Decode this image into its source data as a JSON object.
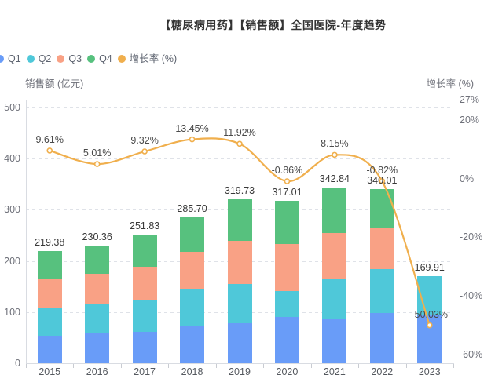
{
  "title": "【糖尿病用药】【销售额】全国医院-年度趋势",
  "legend": {
    "position": "top-left",
    "items": [
      {
        "label": "Q1",
        "color": "#699CF8"
      },
      {
        "label": "Q2",
        "color": "#4FC8D9"
      },
      {
        "label": "Q3",
        "color": "#F9A185"
      },
      {
        "label": "Q4",
        "color": "#57C17E"
      },
      {
        "label": "增长率 (%)",
        "color": "#F0AF4D"
      }
    ]
  },
  "chart_data": {
    "type": "bar",
    "variant": "stacked-bars-with-growth-line",
    "title": "【糖尿病用药】【销售额】全国医院-年度趋势",
    "categories": [
      "2015",
      "2016",
      "2017",
      "2018",
      "2019",
      "2020",
      "2021",
      "2022",
      "2023"
    ],
    "series": [
      {
        "name": "Q1",
        "type": "bar",
        "stack": true,
        "color": "#699CF8",
        "values": [
          53.3,
          59.4,
          61.7,
          73.2,
          77.7,
          90.4,
          85.3,
          98.0,
          95.5
        ]
      },
      {
        "name": "Q2",
        "type": "bar",
        "stack": true,
        "color": "#4FC8D9",
        "values": [
          55.7,
          57.2,
          60.6,
          71.8,
          77.3,
          51.0,
          80.9,
          85.8,
          74.41
        ]
      },
      {
        "name": "Q3",
        "type": "bar",
        "stack": true,
        "color": "#F9A185",
        "values": [
          54.8,
          57.5,
          66.1,
          72.1,
          84.4,
          90.9,
          88.3,
          79.8,
          0
        ]
      },
      {
        "name": "Q4",
        "type": "bar",
        "stack": true,
        "color": "#57C17E",
        "values": [
          55.58,
          56.26,
          63.43,
          68.6,
          80.33,
          84.71,
          88.34,
          76.41,
          0
        ]
      },
      {
        "name": "增长率 (%)",
        "type": "line",
        "y_axis": "right",
        "color": "#F0AF4D",
        "values": [
          9.61,
          5.01,
          9.32,
          13.45,
          11.92,
          -0.86,
          8.15,
          -0.82,
          -50.03
        ]
      }
    ],
    "totals": {
      "values": [
        219.38,
        230.36,
        251.83,
        285.7,
        319.73,
        317.01,
        342.84,
        340.01,
        169.91
      ],
      "labels": [
        "219.38",
        "230.36",
        "251.83",
        "285.70",
        "319.73",
        "317.01",
        "342.84",
        "340.01",
        "169.91"
      ]
    },
    "growth_labels": [
      "9.61%",
      "5.01%",
      "9.32%",
      "13.45%",
      "11.92%",
      "-0.86%",
      "8.15%",
      "-0.82%",
      "-50.03%"
    ],
    "left_axis": {
      "name": "销售额 (亿元)",
      "ticks": [
        500,
        400,
        300,
        200,
        100,
        0
      ],
      "range": [
        0,
        515
      ]
    },
    "right_axis": {
      "name": "增长率 (%)",
      "ticks": [
        27,
        20,
        0,
        -20,
        -40,
        -60
      ],
      "tick_labels": [
        "27%",
        "20%",
        "0%",
        "-20%",
        "-40%",
        "-60%"
      ],
      "range": [
        -63,
        27
      ]
    },
    "grid": {
      "horizontal_gridlines": true,
      "style": "dashed"
    },
    "legend_position": "top-left"
  }
}
